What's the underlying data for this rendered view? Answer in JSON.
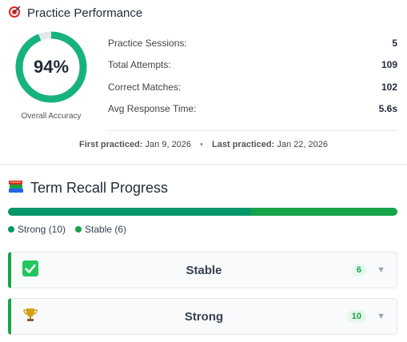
{
  "performance": {
    "icon": "target-icon",
    "title": "Practice Performance",
    "accuracy_percent": 94,
    "accuracy_label": "94%",
    "accuracy_caption": "Overall Accuracy",
    "colors": {
      "ring": "#16b37e",
      "ring_track": "#e5e7eb"
    },
    "stats": [
      {
        "label": "Practice Sessions:",
        "value": "5"
      },
      {
        "label": "Total Attempts:",
        "value": "109"
      },
      {
        "label": "Correct Matches:",
        "value": "102"
      },
      {
        "label": "Avg Response Time:",
        "value": "5.6s"
      }
    ],
    "first_practiced_label": "First practiced:",
    "first_practiced_value": "Jan 9, 2026",
    "separator": "•",
    "last_practiced_label": "Last practiced:",
    "last_practiced_value": "Jan 22, 2026"
  },
  "recall": {
    "icon": "books-icon",
    "title": "Term Recall Progress",
    "progress": [
      {
        "name": "Strong",
        "count": 10,
        "color": "#059669"
      },
      {
        "name": "Stable",
        "count": 6,
        "color": "#16a34a"
      }
    ],
    "legend": [
      {
        "label": "Strong (10)",
        "color": "#059669"
      },
      {
        "label": "Stable (6)",
        "color": "#16a34a"
      }
    ],
    "groups": [
      {
        "icon": "check-mark-icon",
        "label": "Stable",
        "count": "6"
      },
      {
        "icon": "trophy-icon",
        "label": "Strong",
        "count": "10"
      }
    ]
  }
}
